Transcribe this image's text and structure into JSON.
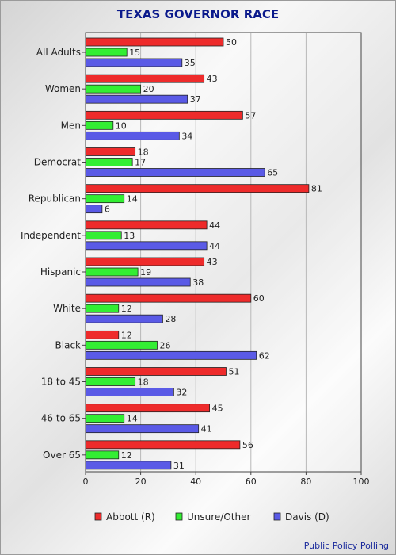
{
  "chart_data": {
    "type": "bar",
    "orientation": "horizontal",
    "title": "TEXAS GOVERNOR RACE",
    "categories": [
      "All Adults",
      "Women",
      "Men",
      "Democrat",
      "Republican",
      "Independent",
      "Hispanic",
      "White",
      "Black",
      "18 to 45",
      "46 to 65",
      "Over 65"
    ],
    "series": [
      {
        "name": "Abbott (R)",
        "color": "#ee2b2b",
        "values": [
          50,
          43,
          57,
          18,
          81,
          44,
          43,
          60,
          12,
          51,
          45,
          56
        ]
      },
      {
        "name": "Unsure/Other",
        "color": "#33ee33",
        "values": [
          15,
          20,
          10,
          17,
          14,
          13,
          19,
          12,
          26,
          18,
          14,
          12
        ]
      },
      {
        "name": "Davis (D)",
        "color": "#5a5ae6",
        "values": [
          35,
          37,
          34,
          65,
          6,
          44,
          38,
          28,
          62,
          32,
          41,
          31
        ]
      }
    ],
    "xlim": [
      0,
      100
    ],
    "xticks": [
      0,
      20,
      40,
      60,
      80,
      100
    ],
    "grid": true,
    "legend_position": "bottom"
  },
  "credit": "Public Policy Polling"
}
